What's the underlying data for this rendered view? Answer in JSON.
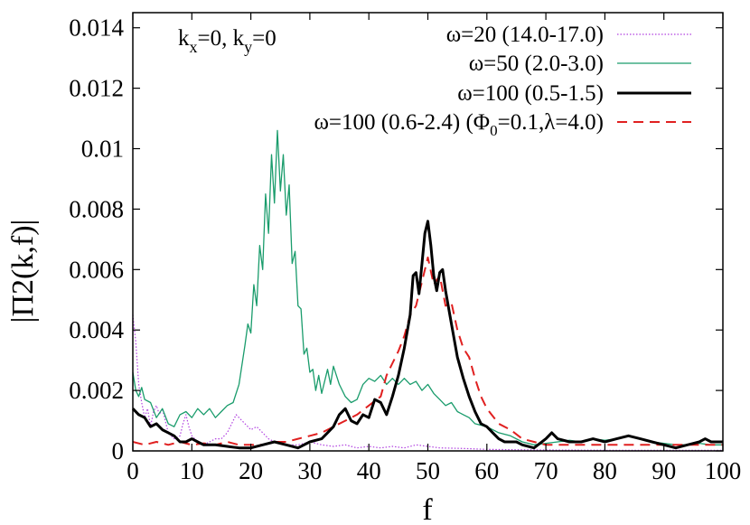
{
  "chart_data": {
    "type": "line",
    "title": "",
    "xlabel": "f",
    "ylabel": "|Π2(k,f)|",
    "xlim": [
      0,
      100
    ],
    "ylim": [
      0,
      0.0145
    ],
    "xticks": [
      "0",
      "10",
      "20",
      "30",
      "40",
      "50",
      "60",
      "70",
      "80",
      "90",
      "100"
    ],
    "yticks": [
      "0",
      "0.002",
      "0.004",
      "0.006",
      "0.008",
      "0.01",
      "0.012",
      "0.014"
    ],
    "grid": false,
    "legend_position": "top-right",
    "annotation": {
      "k": "k",
      "x_sub": "x",
      "mid": "=0, k",
      "y_sub": "y",
      "end": "=0"
    },
    "series": [
      {
        "name": "ω=20 (14.0-17.0)",
        "color": "#b040e0",
        "style": "dotted",
        "points": [
          [
            0,
            0.0045
          ],
          [
            0.5,
            0.0036
          ],
          [
            1,
            0.0022
          ],
          [
            1.5,
            0.0016
          ],
          [
            2,
            0.0011
          ],
          [
            2.5,
            0.0014
          ],
          [
            3,
            0.0008
          ],
          [
            3.5,
            0.0013
          ],
          [
            4,
            0.0015
          ],
          [
            4.5,
            0.0012
          ],
          [
            5,
            0.0014
          ],
          [
            5.5,
            0.001
          ],
          [
            6,
            0.0006
          ],
          [
            7,
            0.0004
          ],
          [
            8,
            0.0005
          ],
          [
            8.5,
            0.0009
          ],
          [
            9,
            0.0012
          ],
          [
            9.5,
            0.0008
          ],
          [
            10,
            0.0005
          ],
          [
            11,
            0.0003
          ],
          [
            12,
            0.0002
          ],
          [
            13,
            0.0003
          ],
          [
            14,
            0.0004
          ],
          [
            15,
            0.0004
          ],
          [
            16,
            0.0006
          ],
          [
            17,
            0.001
          ],
          [
            17.5,
            0.0012
          ],
          [
            18,
            0.0011
          ],
          [
            19,
            0.0009
          ],
          [
            20,
            0.0007
          ],
          [
            21,
            0.0008
          ],
          [
            22,
            0.0006
          ],
          [
            23,
            0.0004
          ],
          [
            24,
            0.0003
          ],
          [
            26,
            0.0002
          ],
          [
            28,
            0.0002
          ],
          [
            30,
            0.0003
          ],
          [
            32,
            0.0002
          ],
          [
            34,
            0.00015
          ],
          [
            36,
            0.0002
          ],
          [
            38,
            0.0001
          ],
          [
            40,
            0.00015
          ],
          [
            42,
            0.0001
          ],
          [
            44,
            0.00015
          ],
          [
            46,
            0.0001
          ],
          [
            48,
            0.0002
          ],
          [
            50,
            0.00015
          ],
          [
            52,
            0.0001
          ],
          [
            56,
            8e-05
          ],
          [
            60,
            5e-05
          ],
          [
            65,
            4e-05
          ],
          [
            70,
            3e-05
          ],
          [
            80,
            2e-05
          ],
          [
            90,
            2e-05
          ],
          [
            100,
            2e-05
          ]
        ]
      },
      {
        "name": "ω=50 (2.0-3.0)",
        "color": "#1a9c6c",
        "style": "solid",
        "points": [
          [
            0,
            0.0026
          ],
          [
            0.5,
            0.002
          ],
          [
            1,
            0.0018
          ],
          [
            1.5,
            0.0021
          ],
          [
            2,
            0.0017
          ],
          [
            3,
            0.0016
          ],
          [
            4,
            0.0011
          ],
          [
            5,
            0.0014
          ],
          [
            6,
            0.0009
          ],
          [
            7,
            0.0008
          ],
          [
            8,
            0.0012
          ],
          [
            9,
            0.0013
          ],
          [
            10,
            0.0011
          ],
          [
            11,
            0.0014
          ],
          [
            12,
            0.0012
          ],
          [
            13,
            0.0014
          ],
          [
            14,
            0.0011
          ],
          [
            15,
            0.0013
          ],
          [
            16,
            0.0015
          ],
          [
            17,
            0.0016
          ],
          [
            18,
            0.0022
          ],
          [
            19,
            0.0035
          ],
          [
            19.5,
            0.0042
          ],
          [
            20,
            0.0039
          ],
          [
            20.5,
            0.0055
          ],
          [
            21,
            0.0048
          ],
          [
            21.5,
            0.0068
          ],
          [
            22,
            0.006
          ],
          [
            22.5,
            0.0085
          ],
          [
            23,
            0.0072
          ],
          [
            23.5,
            0.0098
          ],
          [
            24,
            0.0082
          ],
          [
            24.5,
            0.0106
          ],
          [
            25,
            0.0086
          ],
          [
            25.5,
            0.0098
          ],
          [
            26,
            0.0078
          ],
          [
            26.5,
            0.0088
          ],
          [
            27,
            0.0062
          ],
          [
            27.5,
            0.0066
          ],
          [
            28,
            0.0048
          ],
          [
            28.5,
            0.0047
          ],
          [
            29,
            0.0032
          ],
          [
            29.5,
            0.0034
          ],
          [
            30,
            0.0026
          ],
          [
            30.5,
            0.0027
          ],
          [
            31,
            0.002
          ],
          [
            31.5,
            0.0025
          ],
          [
            32,
            0.0019
          ],
          [
            33,
            0.0027
          ],
          [
            33.5,
            0.0022
          ],
          [
            34,
            0.0028
          ],
          [
            35,
            0.0022
          ],
          [
            36,
            0.0018
          ],
          [
            37,
            0.0016
          ],
          [
            38,
            0.0017
          ],
          [
            39,
            0.0022
          ],
          [
            40,
            0.0024
          ],
          [
            41,
            0.0023
          ],
          [
            42,
            0.0025
          ],
          [
            43,
            0.0022
          ],
          [
            44,
            0.0024
          ],
          [
            45,
            0.0022
          ],
          [
            46,
            0.0024
          ],
          [
            47,
            0.0022
          ],
          [
            48,
            0.0023
          ],
          [
            49,
            0.002
          ],
          [
            50,
            0.0022
          ],
          [
            51,
            0.0019
          ],
          [
            52,
            0.0017
          ],
          [
            53,
            0.0015
          ],
          [
            54,
            0.0016
          ],
          [
            55,
            0.0013
          ],
          [
            56,
            0.0012
          ],
          [
            57,
            0.0011
          ],
          [
            58,
            0.0009
          ],
          [
            60,
            0.0008
          ],
          [
            62,
            0.0006
          ],
          [
            64,
            0.0005
          ],
          [
            66,
            0.0003
          ],
          [
            68,
            0.0002
          ],
          [
            70,
            0.00025
          ],
          [
            72,
            0.0003
          ],
          [
            74,
            0.00035
          ],
          [
            76,
            0.0003
          ],
          [
            78,
            0.0004
          ],
          [
            80,
            0.00035
          ],
          [
            82,
            0.0004
          ],
          [
            84,
            0.0005
          ],
          [
            86,
            0.0004
          ],
          [
            88,
            0.0003
          ],
          [
            90,
            0.00025
          ],
          [
            92,
            0.0002
          ],
          [
            94,
            0.0002
          ],
          [
            96,
            0.00025
          ],
          [
            98,
            0.0002
          ],
          [
            100,
            0.0002
          ]
        ]
      },
      {
        "name": "ω=100 (0.5-1.5)",
        "color": "#000000",
        "style": "solid-thick",
        "points": [
          [
            0,
            0.0014
          ],
          [
            1,
            0.0012
          ],
          [
            2,
            0.0011
          ],
          [
            3,
            0.0008
          ],
          [
            4,
            0.0009
          ],
          [
            5,
            0.0007
          ],
          [
            6,
            0.0006
          ],
          [
            7,
            0.0005
          ],
          [
            8,
            0.0003
          ],
          [
            9,
            0.0003
          ],
          [
            10,
            0.0004
          ],
          [
            11,
            0.0003
          ],
          [
            12,
            0.0002
          ],
          [
            14,
            0.0002
          ],
          [
            16,
            0.00015
          ],
          [
            18,
            0.0001
          ],
          [
            20,
            0.0001
          ],
          [
            22,
            0.0002
          ],
          [
            24,
            0.0003
          ],
          [
            26,
            0.0002
          ],
          [
            28,
            0.0001
          ],
          [
            30,
            0.0003
          ],
          [
            32,
            0.0004
          ],
          [
            33,
            0.0006
          ],
          [
            34,
            0.0008
          ],
          [
            35,
            0.0012
          ],
          [
            36,
            0.0014
          ],
          [
            37,
            0.001
          ],
          [
            38,
            0.0009
          ],
          [
            39,
            0.0012
          ],
          [
            40,
            0.0011
          ],
          [
            41,
            0.0017
          ],
          [
            42,
            0.0016
          ],
          [
            43,
            0.0012
          ],
          [
            44,
            0.0018
          ],
          [
            45,
            0.0025
          ],
          [
            46,
            0.0034
          ],
          [
            47,
            0.0045
          ],
          [
            47.5,
            0.0058
          ],
          [
            48,
            0.0059
          ],
          [
            48.5,
            0.0052
          ],
          [
            49,
            0.0062
          ],
          [
            49.5,
            0.0072
          ],
          [
            50,
            0.0076
          ],
          [
            50.5,
            0.0068
          ],
          [
            51,
            0.0058
          ],
          [
            51.5,
            0.0053
          ],
          [
            52,
            0.0059
          ],
          [
            52.5,
            0.006
          ],
          [
            53,
            0.0053
          ],
          [
            54,
            0.0042
          ],
          [
            55,
            0.0031
          ],
          [
            56,
            0.0024
          ],
          [
            57,
            0.0018
          ],
          [
            58,
            0.0013
          ],
          [
            59,
            0.0009
          ],
          [
            60,
            0.0008
          ],
          [
            61,
            0.0006
          ],
          [
            62,
            0.0004
          ],
          [
            63,
            0.0003
          ],
          [
            65,
            0.0003
          ],
          [
            66,
            0.0002
          ],
          [
            68,
            0.0001
          ],
          [
            70,
            0.0004
          ],
          [
            71,
            0.0006
          ],
          [
            72,
            0.0004
          ],
          [
            74,
            0.0003
          ],
          [
            76,
            0.0003
          ],
          [
            78,
            0.0004
          ],
          [
            80,
            0.0003
          ],
          [
            82,
            0.0004
          ],
          [
            84,
            0.0005
          ],
          [
            86,
            0.0004
          ],
          [
            88,
            0.0003
          ],
          [
            90,
            0.0002
          ],
          [
            92,
            0.0001
          ],
          [
            94,
            0.0002
          ],
          [
            96,
            0.0003
          ],
          [
            97,
            0.0004
          ],
          [
            98,
            0.0003
          ],
          [
            100,
            0.0003
          ]
        ]
      },
      {
        "name": "ω=100 (0.6-2.4) (Φ0=0.1,λ=4.0)",
        "color": "#e02020",
        "style": "dashed",
        "points": [
          [
            0,
            0.0003
          ],
          [
            2,
            0.0002
          ],
          [
            4,
            0.0003
          ],
          [
            6,
            0.0002
          ],
          [
            8,
            0.0003
          ],
          [
            10,
            0.0002
          ],
          [
            12,
            0.00025
          ],
          [
            14,
            0.0002
          ],
          [
            16,
            0.0003
          ],
          [
            18,
            0.0002
          ],
          [
            20,
            0.0002
          ],
          [
            22,
            0.0002
          ],
          [
            24,
            0.0003
          ],
          [
            26,
            0.0003
          ],
          [
            28,
            0.0004
          ],
          [
            30,
            0.0005
          ],
          [
            32,
            0.0006
          ],
          [
            34,
            0.0008
          ],
          [
            36,
            0.001
          ],
          [
            38,
            0.0012
          ],
          [
            40,
            0.0015
          ],
          [
            42,
            0.0018
          ],
          [
            43,
            0.0025
          ],
          [
            44,
            0.0029
          ],
          [
            45,
            0.0033
          ],
          [
            46,
            0.0038
          ],
          [
            47,
            0.0045
          ],
          [
            48,
            0.0048
          ],
          [
            49,
            0.0056
          ],
          [
            50,
            0.0064
          ],
          [
            51,
            0.0055
          ],
          [
            52,
            0.0058
          ],
          [
            53,
            0.0048
          ],
          [
            54,
            0.0049
          ],
          [
            55,
            0.004
          ],
          [
            56,
            0.0034
          ],
          [
            57,
            0.0031
          ],
          [
            58,
            0.0024
          ],
          [
            59,
            0.0018
          ],
          [
            60,
            0.0014
          ],
          [
            62,
            0.0009
          ],
          [
            64,
            0.0007
          ],
          [
            66,
            0.0004
          ],
          [
            68,
            0.0003
          ],
          [
            70,
            0.0002
          ],
          [
            72,
            0.0002
          ],
          [
            74,
            0.0002
          ],
          [
            76,
            0.0002
          ],
          [
            80,
            0.0002
          ],
          [
            84,
            0.0002
          ],
          [
            90,
            0.0002
          ],
          [
            100,
            0.0002
          ]
        ]
      }
    ],
    "legend_labels": {
      "s0": "ω=20 (14.0-17.0)",
      "s1": "ω=50 (2.0-3.0)",
      "s2": "ω=100 (0.5-1.5)",
      "s3_pre": "ω=100 (0.6-2.4) (Φ",
      "s3_sub": "0",
      "s3_post": "=0.1,λ=4.0)"
    }
  }
}
